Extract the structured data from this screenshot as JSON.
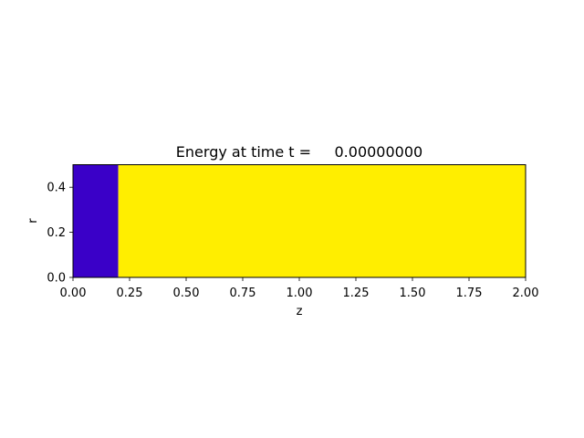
{
  "chart_data": {
    "type": "heatmap",
    "title": "Energy at time t =     0.00000000",
    "xlabel": "z",
    "ylabel": "r",
    "xlim": [
      0.0,
      2.0
    ],
    "ylim": [
      0.0,
      0.5
    ],
    "x_ticks": [
      0.0,
      0.25,
      0.5,
      0.75,
      1.0,
      1.25,
      1.5,
      1.75,
      2.0
    ],
    "x_tick_labels": [
      "0.00",
      "0.25",
      "0.50",
      "0.75",
      "1.00",
      "1.25",
      "1.50",
      "1.75",
      "2.00"
    ],
    "y_ticks": [
      0.0,
      0.2,
      0.4
    ],
    "y_tick_labels": [
      "0.0",
      "0.2",
      "0.4"
    ],
    "grid": false,
    "regions": [
      {
        "z_range": [
          0.0,
          0.2
        ],
        "r_range": [
          0.0,
          0.5
        ],
        "color": "#3a00c8"
      },
      {
        "z_range": [
          0.2,
          2.0
        ],
        "r_range": [
          0.0,
          0.5
        ],
        "color": "#ffee00"
      }
    ]
  }
}
